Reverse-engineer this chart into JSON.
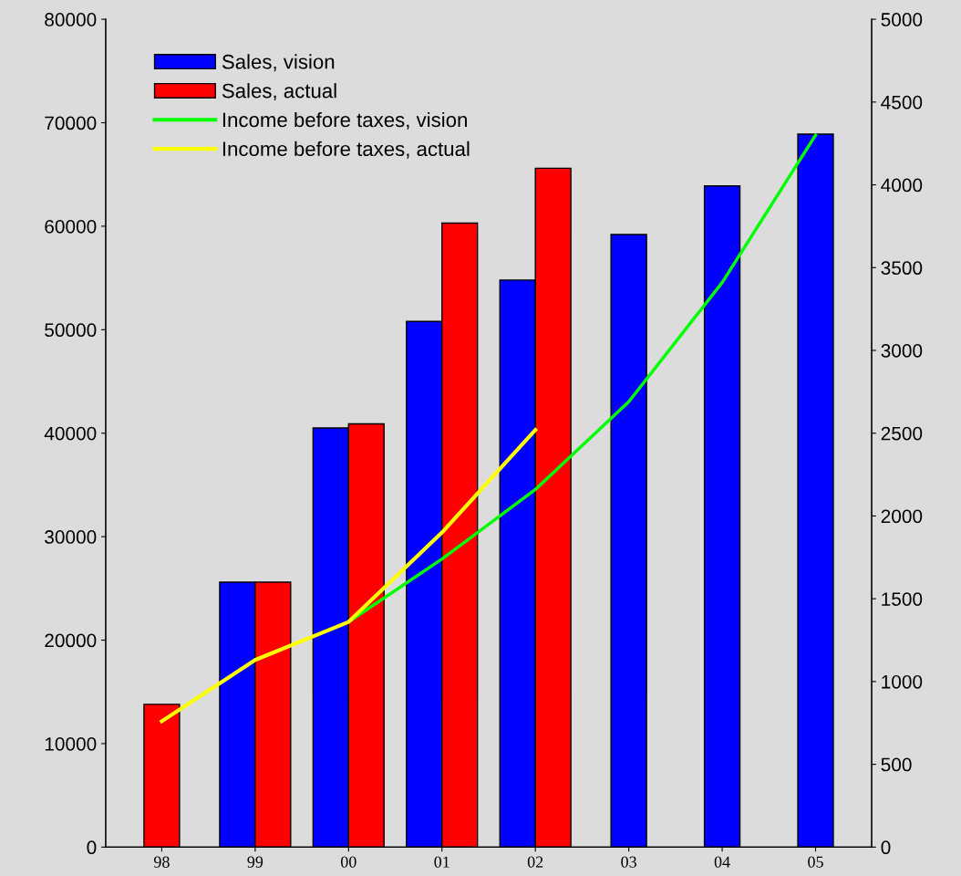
{
  "chart_data": {
    "type": "bar",
    "categories": [
      "98",
      "99",
      "00",
      "01",
      "02",
      "03",
      "04",
      "05"
    ],
    "series": [
      {
        "name": "Sales, vision",
        "color": "#0000ff",
        "values": [
          null,
          25600,
          40500,
          50800,
          54800,
          59200,
          63900,
          68900
        ]
      },
      {
        "name": "Sales, actual",
        "color": "#ff0000",
        "values": [
          13800,
          25600,
          40900,
          60300,
          65600,
          null,
          null,
          null
        ]
      },
      {
        "name": "Income before taxes, vision",
        "type": "line",
        "axis": "y2",
        "color": "#00ff00",
        "values": [
          null,
          null,
          1360,
          1740,
          2160,
          2690,
          3410,
          4300
        ]
      },
      {
        "name": "Income before taxes, actual",
        "type": "line",
        "axis": "y2",
        "color": "#ffff00",
        "values": [
          760,
          1130,
          1360,
          1900,
          2520,
          null,
          null,
          null
        ]
      }
    ],
    "ylim": [
      0,
      80000
    ],
    "yticks": [
      0,
      10000,
      20000,
      30000,
      40000,
      50000,
      60000,
      70000,
      80000
    ],
    "y2lim": [
      0,
      5000
    ],
    "y2ticks": [
      0,
      500,
      1000,
      1500,
      2000,
      2500,
      3000,
      3500,
      4000,
      4500,
      5000
    ],
    "grid": false,
    "legend": "top left",
    "marker": "none",
    "line_style": "solid"
  }
}
